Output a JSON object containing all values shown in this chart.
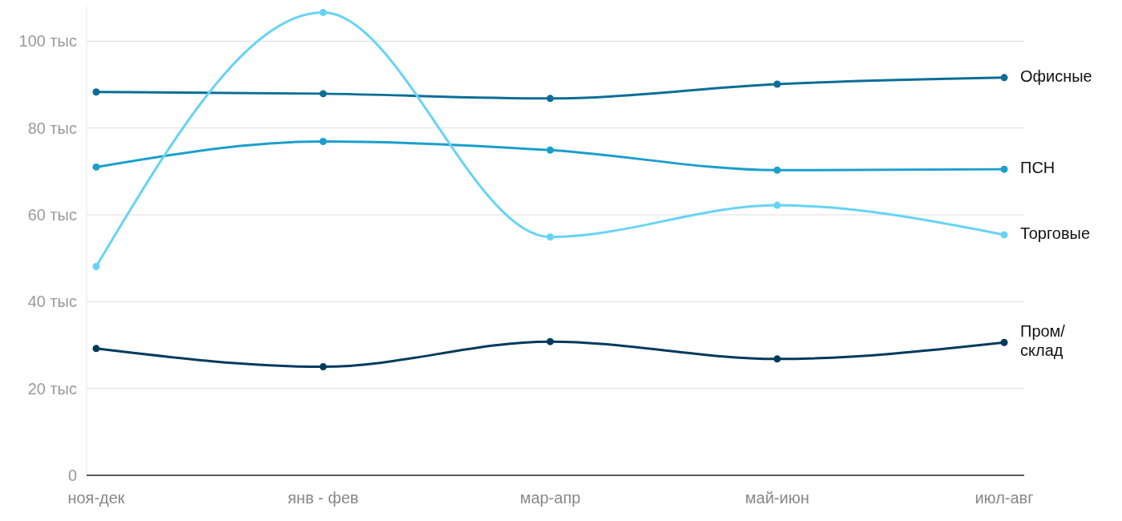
{
  "chart_data": {
    "type": "line",
    "categories": [
      "ноя-дек",
      "янв - фев",
      "мар-апр",
      "май-июн",
      "июл-авг"
    ],
    "series": [
      {
        "name": "Офисные",
        "color": "#0b6e96",
        "values": [
          88.3,
          87.9,
          86.8,
          90.1,
          91.6
        ]
      },
      {
        "name": "ПСН",
        "color": "#1a9fcc",
        "values": [
          71.0,
          76.9,
          74.9,
          70.3,
          70.5
        ]
      },
      {
        "name": "Торговые",
        "color": "#66d4f5",
        "values": [
          48.1,
          106.6,
          54.9,
          62.2,
          55.4
        ]
      },
      {
        "name": "Пром/склад",
        "color": "#003a5c",
        "values": [
          29.2,
          25.0,
          30.8,
          26.8,
          30.6
        ]
      }
    ],
    "ylim": [
      0,
      108
    ],
    "yticks": [
      0,
      {
        "value": 20,
        "label": "20 тыс"
      },
      {
        "value": 40,
        "label": "40 тыс"
      },
      {
        "value": 60,
        "label": "60 тыс"
      },
      {
        "value": 80,
        "label": "80 тыс"
      },
      {
        "value": 100,
        "label": "100 тыс"
      }
    ],
    "grid": "y",
    "marker": "circle",
    "line_style": "solid"
  }
}
